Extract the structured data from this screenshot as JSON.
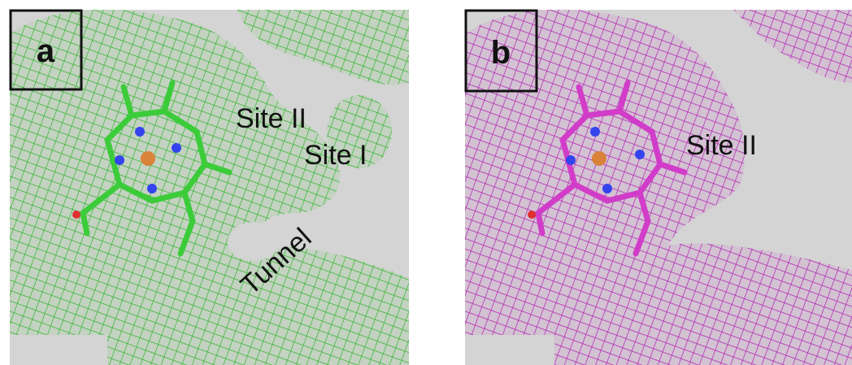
{
  "panels": [
    {
      "label": "a",
      "annotations": [
        "Site II",
        "Site I",
        "Tunnel"
      ]
    },
    {
      "label": "b",
      "annotations": [
        "Site II"
      ]
    }
  ]
}
